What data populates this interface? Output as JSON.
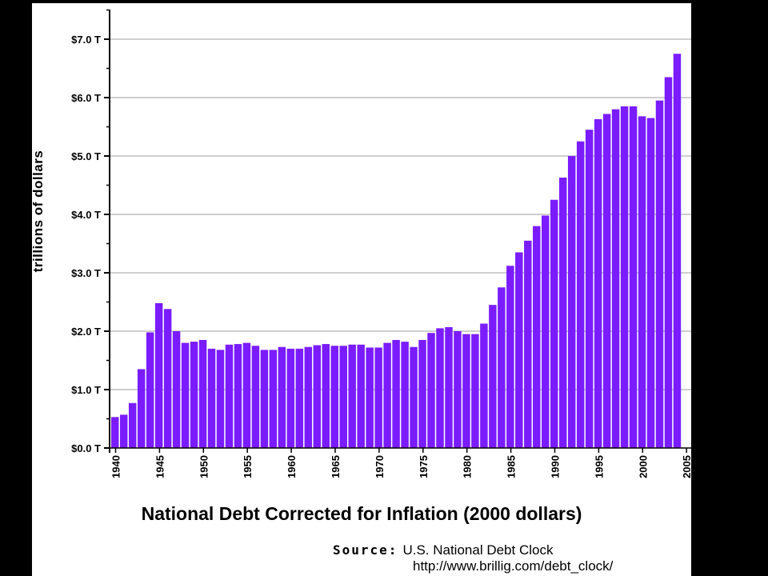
{
  "chart_data": {
    "type": "bar",
    "title": "National Debt Corrected for Inflation (2000 dollars)",
    "ylabel": "trillions of dollars",
    "xlabel": "",
    "ylim": [
      0,
      7.0
    ],
    "grid": true,
    "bar_color": "#7a1cff",
    "ytick_labels": [
      "$0.0 T",
      "$1.0 T",
      "$2.0 T",
      "$3.0 T",
      "$4.0 T",
      "$5.0 T",
      "$6.0 T",
      "$7.0 T"
    ],
    "ytick_values": [
      0,
      1,
      2,
      3,
      4,
      5,
      6,
      7
    ],
    "xtick_labels": [
      "1940",
      "1945",
      "1950",
      "1955",
      "1960",
      "1965",
      "1970",
      "1975",
      "1980",
      "1985",
      "1990",
      "1995",
      "2000",
      "2005"
    ],
    "categories": [
      1940,
      1941,
      1942,
      1943,
      1944,
      1945,
      1946,
      1947,
      1948,
      1949,
      1950,
      1951,
      1952,
      1953,
      1954,
      1955,
      1956,
      1957,
      1958,
      1959,
      1960,
      1961,
      1962,
      1963,
      1964,
      1965,
      1966,
      1967,
      1968,
      1969,
      1970,
      1971,
      1972,
      1973,
      1974,
      1975,
      1976,
      1977,
      1978,
      1979,
      1980,
      1981,
      1982,
      1983,
      1984,
      1985,
      1986,
      1987,
      1988,
      1989,
      1990,
      1991,
      1992,
      1993,
      1994,
      1995,
      1996,
      1997,
      1998,
      1999,
      2000,
      2001,
      2002,
      2003,
      2004
    ],
    "values": [
      0.53,
      0.57,
      0.77,
      1.35,
      1.98,
      2.48,
      2.38,
      2.0,
      1.8,
      1.82,
      1.85,
      1.7,
      1.68,
      1.77,
      1.78,
      1.8,
      1.75,
      1.68,
      1.68,
      1.73,
      1.7,
      1.7,
      1.73,
      1.76,
      1.78,
      1.75,
      1.75,
      1.77,
      1.77,
      1.72,
      1.72,
      1.8,
      1.85,
      1.82,
      1.73,
      1.85,
      1.97,
      2.05,
      2.07,
      2.0,
      1.95,
      1.95,
      2.13,
      2.45,
      2.75,
      3.12,
      3.35,
      3.55,
      3.8,
      3.98,
      4.25,
      4.63,
      5.0,
      5.25,
      5.45,
      5.63,
      5.72,
      5.8,
      5.85,
      5.85,
      5.68,
      5.65,
      5.95,
      6.35,
      6.75
    ]
  },
  "source": {
    "label": "Source:",
    "text": "U.S. National Debt Clock",
    "url": "http://www.brillig.com/debt_clock/"
  }
}
